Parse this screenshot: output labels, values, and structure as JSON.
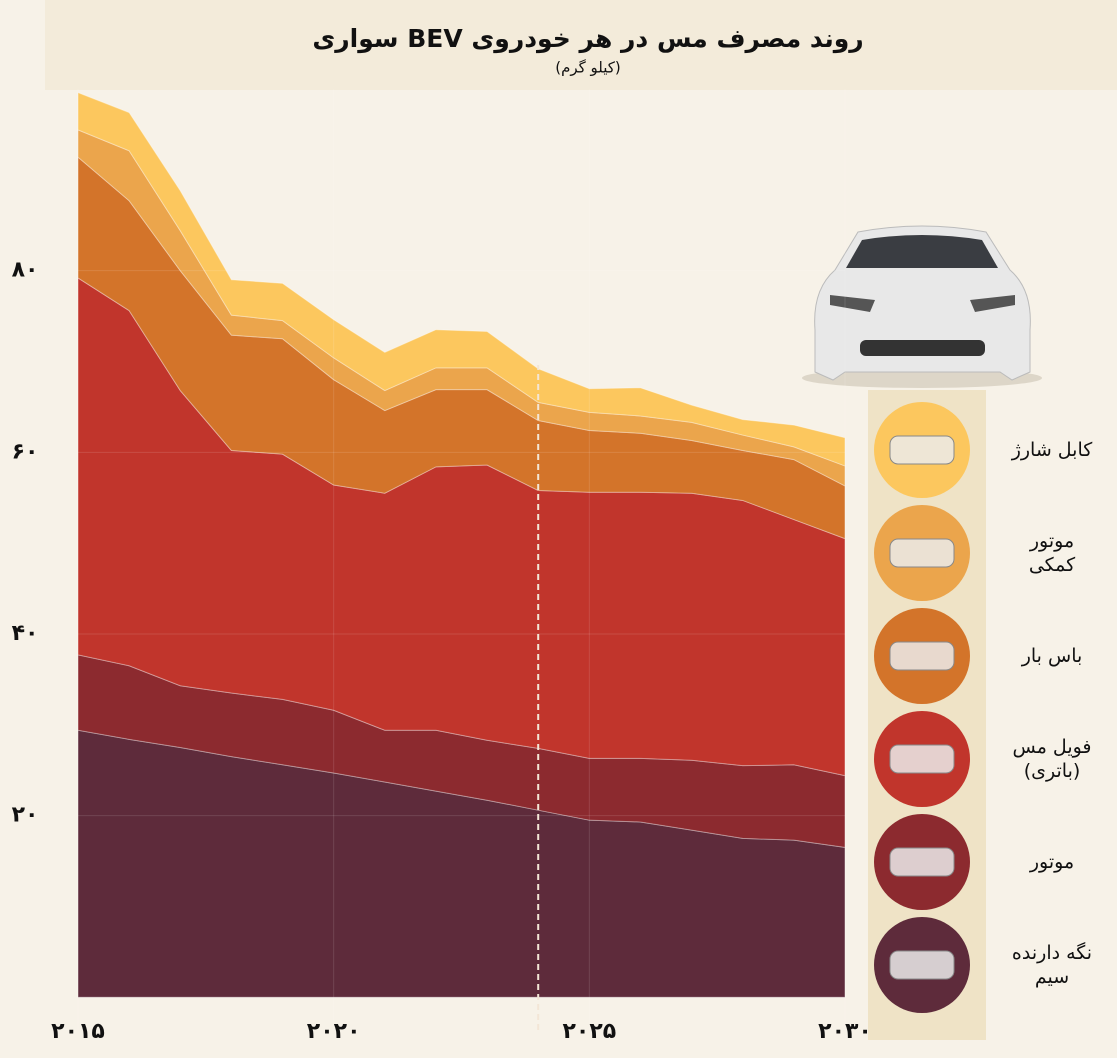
{
  "chart_data": {
    "type": "stacked_area",
    "title": "روند مصرف مس در هر خودروی BEV سواری",
    "subtitle": "(کیلو گرم)",
    "x": [
      2015,
      2016,
      2017,
      2018,
      2019,
      2020,
      2021,
      2022,
      2023,
      2024,
      2025,
      2026,
      2027,
      2028,
      2029,
      2030
    ],
    "xlim": [
      2015,
      2030
    ],
    "xticks": [
      {
        "value": 2015,
        "label": "۲۰۱۵"
      },
      {
        "value": 2020,
        "label": "۲۰۲۰"
      },
      {
        "value": 2025,
        "label": "۲۰۲۵"
      },
      {
        "value": 2030,
        "label": "۲۰۳۰"
      }
    ],
    "ylim": [
      -3.6,
      100
    ],
    "yticks": [
      {
        "value": 20,
        "label": "۲۰"
      },
      {
        "value": 40,
        "label": "۴۰"
      },
      {
        "value": 60,
        "label": "۶۰"
      },
      {
        "value": 80,
        "label": "۸۰"
      }
    ],
    "divider_x": 2024,
    "grid": true,
    "series": [
      {
        "name": "نگه دارنده سیم",
        "color": "#5e2b3b",
        "values": [
          29.4,
          28.4,
          27.5,
          26.5,
          25.6,
          24.7,
          23.7,
          22.7,
          21.7,
          20.6,
          19.5,
          19.3,
          18.4,
          17.5,
          17.3,
          16.5
        ]
      },
      {
        "name": "موتور",
        "color": "#8c2a2f",
        "values": [
          8.3,
          8.1,
          6.8,
          7.0,
          7.2,
          6.9,
          5.7,
          6.7,
          6.6,
          6.8,
          6.8,
          7.0,
          7.7,
          8.0,
          8.3,
          7.9
        ]
      },
      {
        "name": "فویل مس (باتری)",
        "color": "#c1352c",
        "values": [
          41.5,
          39.1,
          32.5,
          26.7,
          27.0,
          24.8,
          26.1,
          29.0,
          30.3,
          28.4,
          29.3,
          29.3,
          29.4,
          29.2,
          27.0,
          26.1
        ]
      },
      {
        "name": "باس بار",
        "color": "#d3742a",
        "values": [
          13.3,
          12.1,
          13.2,
          12.7,
          12.7,
          11.6,
          9.1,
          8.5,
          8.3,
          7.7,
          6.8,
          6.5,
          5.8,
          5.5,
          6.6,
          5.8
        ]
      },
      {
        "name": "موتور کمکی",
        "color": "#eba54c",
        "values": [
          3.0,
          5.5,
          4.4,
          2.2,
          2.0,
          2.4,
          2.2,
          2.4,
          2.4,
          2.0,
          2.0,
          1.9,
          2.0,
          1.7,
          1.4,
          2.2
        ]
      },
      {
        "name": "کابل شارژ",
        "color": "#fcc75e",
        "values": [
          4.1,
          4.2,
          4.4,
          3.9,
          4.1,
          4.2,
          4.2,
          4.2,
          4.0,
          3.7,
          2.6,
          3.1,
          1.9,
          1.7,
          2.4,
          3.1
        ]
      }
    ]
  }
}
